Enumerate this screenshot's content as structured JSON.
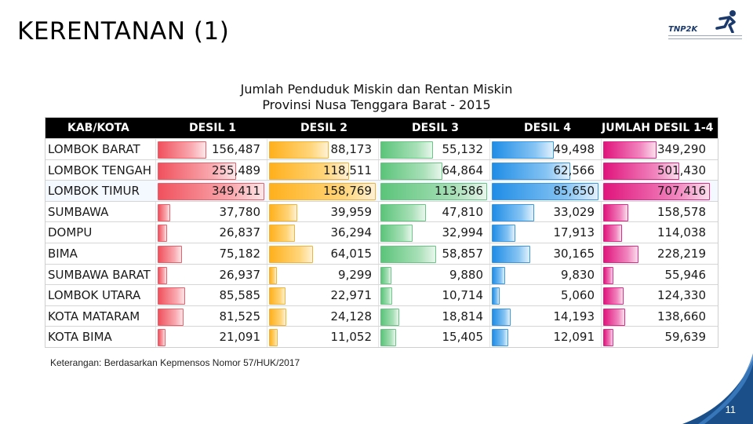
{
  "slide": {
    "title": "KERENTANAN (1)",
    "page_number": "11",
    "note": "Keterangan: Berdasarkan Kepmensos Nomor 57/HUK/2017"
  },
  "logo": {
    "text": "TNP2K"
  },
  "table_title": {
    "line1": "Jumlah Penduduk Miskin dan Rentan Miskin",
    "line2": "Provinsi Nusa Tenggara Barat - 2015"
  },
  "colors": {
    "desil1": "#f0515d",
    "desil2": "#ffb01c",
    "desil3": "#5bc47a",
    "desil4": "#1f8de6",
    "jumlah": "#e0147c",
    "header_bg": "#000000",
    "corner": "#1a4f8a"
  },
  "headers": [
    "KAB/KOTA",
    "DESIL 1",
    "DESIL 2",
    "DESIL 3",
    "DESIL 4",
    "JUMLAH DESIL 1-4"
  ],
  "rows": [
    {
      "name": "LOMBOK BARAT",
      "d1": "156,487",
      "d2": "88,173",
      "d3": "55,132",
      "d4": "49,498",
      "total": "349,290"
    },
    {
      "name": "LOMBOK TENGAH",
      "d1": "255,489",
      "d2": "118,511",
      "d3": "64,864",
      "d4": "62,566",
      "total": "501,430"
    },
    {
      "name": "LOMBOK TIMUR",
      "d1": "349,411",
      "d2": "158,769",
      "d3": "113,586",
      "d4": "85,650",
      "total": "707,416"
    },
    {
      "name": "SUMBAWA",
      "d1": "37,780",
      "d2": "39,959",
      "d3": "47,810",
      "d4": "33,029",
      "total": "158,578"
    },
    {
      "name": "DOMPU",
      "d1": "26,837",
      "d2": "36,294",
      "d3": "32,994",
      "d4": "17,913",
      "total": "114,038"
    },
    {
      "name": "BIMA",
      "d1": "75,182",
      "d2": "64,015",
      "d3": "58,857",
      "d4": "30,165",
      "total": "228,219"
    },
    {
      "name": "SUMBAWA BARAT",
      "d1": "26,937",
      "d2": "9,299",
      "d3": "9,880",
      "d4": "9,830",
      "total": "55,946"
    },
    {
      "name": "LOMBOK UTARA",
      "d1": "85,585",
      "d2": "22,971",
      "d3": "10,714",
      "d4": "5,060",
      "total": "124,330"
    },
    {
      "name": "KOTA MATARAM",
      "d1": "81,525",
      "d2": "24,128",
      "d3": "18,814",
      "d4": "14,193",
      "total": "138,660"
    },
    {
      "name": "KOTA BIMA",
      "d1": "21,091",
      "d2": "11,052",
      "d3": "15,405",
      "d4": "12,091",
      "total": "59,639"
    }
  ]
}
